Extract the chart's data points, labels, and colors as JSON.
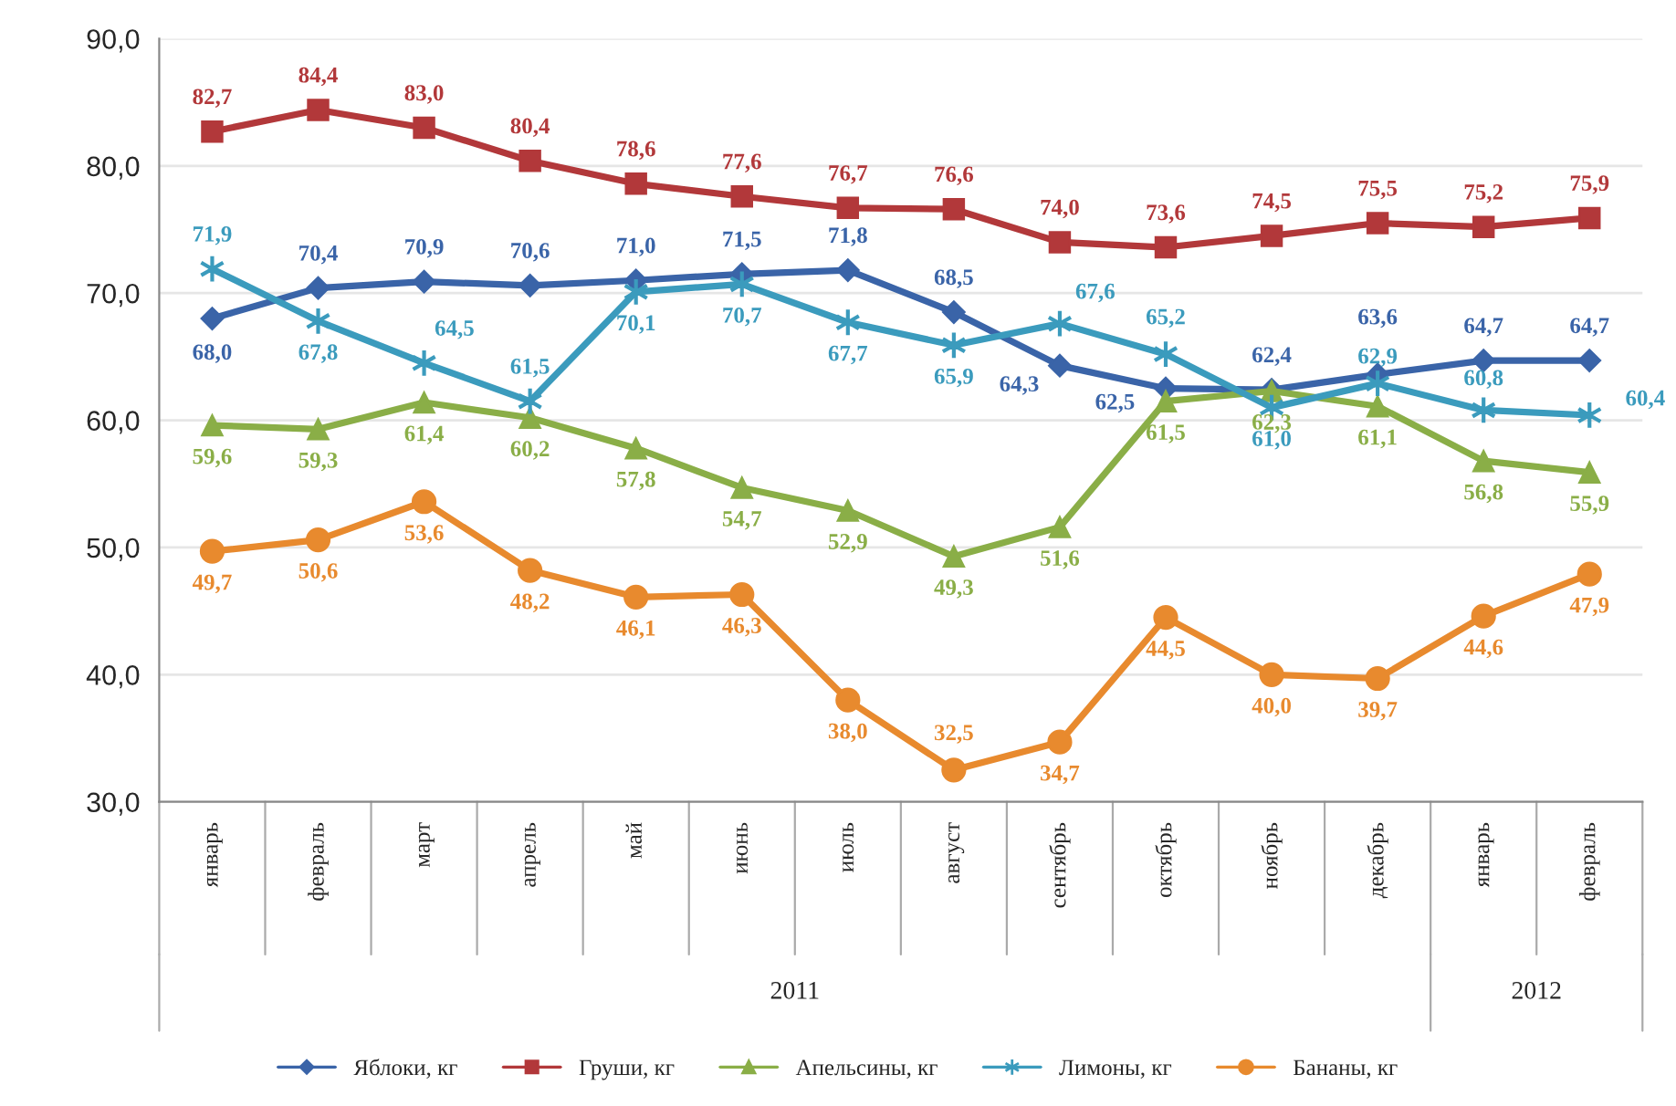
{
  "chart_data": {
    "type": "line",
    "categories": [
      "январь",
      "февраль",
      "март",
      "апрель",
      "май",
      "июнь",
      "июль",
      "август",
      "сентябрь",
      "октябрь",
      "ноябрь",
      "декабрь",
      "январь",
      "февраль"
    ],
    "annotations": [
      "2011",
      "2012"
    ],
    "series": [
      {
        "name": "Яблоки, кг",
        "color": "#3a64a8",
        "marker": "diamond",
        "values": [
          68.0,
          70.4,
          70.9,
          70.6,
          71.0,
          71.5,
          71.8,
          68.5,
          64.3,
          62.5,
          62.4,
          63.6,
          64.7,
          64.7
        ],
        "value_labels": [
          "68,0",
          "70,4",
          "70,9",
          "70,6",
          "71,0",
          "71,5",
          "71,8",
          "68,5",
          "64,3",
          "62,5",
          "62,4",
          "63,6",
          "64,7",
          "64,7"
        ]
      },
      {
        "name": "Груши, кг",
        "color": "#b2383a",
        "marker": "square",
        "values": [
          82.7,
          84.4,
          83.0,
          80.4,
          78.6,
          77.6,
          76.7,
          76.6,
          74.0,
          73.6,
          74.5,
          75.5,
          75.2,
          75.9
        ],
        "value_labels": [
          "82,7",
          "84,4",
          "83,0",
          "80,4",
          "78,6",
          "77,6",
          "76,7",
          "76,6",
          "74,0",
          "73,6",
          "74,5",
          "75,5",
          "75,2",
          "75,9"
        ]
      },
      {
        "name": "Апельсины, кг",
        "color": "#8aae47",
        "marker": "triangle",
        "values": [
          59.6,
          59.3,
          61.4,
          60.2,
          57.8,
          54.7,
          52.9,
          49.3,
          51.6,
          61.5,
          62.3,
          61.1,
          56.8,
          55.9
        ],
        "value_labels": [
          "59,6",
          "59,3",
          "61,4",
          "60,2",
          "57,8",
          "54,7",
          "52,9",
          "49,3",
          "51,6",
          "61,5",
          "62,3",
          "61,1",
          "56,8",
          "55,9"
        ]
      },
      {
        "name": "Лимоны, кг",
        "color": "#3b9bbd",
        "marker": "cross",
        "values": [
          71.9,
          67.8,
          64.5,
          61.5,
          70.1,
          70.7,
          67.7,
          65.9,
          67.6,
          65.2,
          61.0,
          62.9,
          60.8,
          60.4
        ],
        "value_labels": [
          "71,9",
          "67,8",
          "64,5",
          "61,5",
          "70,1",
          "70,7",
          "67,7",
          "65,9",
          "67,6",
          "65,2",
          "61,0",
          "62,9",
          "60,8",
          "60,4"
        ]
      },
      {
        "name": "Бананы, кг",
        "color": "#e88a2e",
        "marker": "circle",
        "values": [
          49.7,
          50.6,
          53.6,
          48.2,
          46.1,
          46.3,
          38.0,
          32.5,
          34.7,
          44.5,
          40.0,
          39.7,
          44.6,
          47.9
        ],
        "value_labels": [
          "49,7",
          "50,6",
          "53,6",
          "48,2",
          "46,1",
          "46,3",
          "38,0",
          "32,5",
          "34,7",
          "44,5",
          "40,0",
          "39,7",
          "44,6",
          "47,9"
        ]
      }
    ],
    "ylim": [
      30,
      90
    ],
    "yticks": [
      {
        "value": 30,
        "label": "30,0"
      },
      {
        "value": 40,
        "label": "40,0"
      },
      {
        "value": 50,
        "label": "50,0"
      },
      {
        "value": 60,
        "label": "60,0"
      },
      {
        "value": 70,
        "label": "70,0"
      },
      {
        "value": 80,
        "label": "80,0"
      },
      {
        "value": 90,
        "label": "90,0"
      }
    ],
    "grid": "y",
    "legend": "bottom",
    "line_style": "solid"
  }
}
